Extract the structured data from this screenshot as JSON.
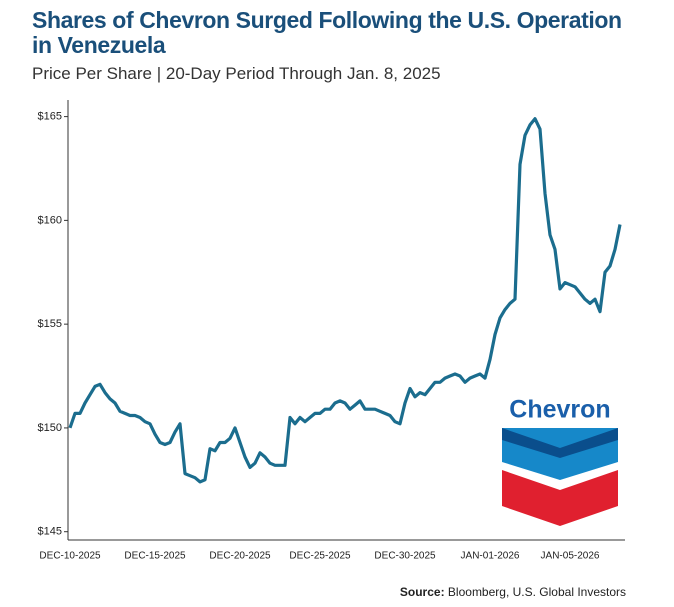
{
  "chart_data": {
    "type": "line",
    "title": "Shares of Chevron Surged Following the U.S. Operation in Venezuela",
    "subtitle": "Price Per Share | 20-Day Period Through Jan. 8, 2025",
    "categories": [
      "DEC-10-2025",
      null,
      null,
      null,
      null,
      null,
      null,
      null,
      null,
      null,
      null,
      null,
      null,
      null,
      null,
      null,
      null,
      "DEC-15-2025",
      null,
      null,
      null,
      null,
      null,
      null,
      null,
      null,
      null,
      null,
      null,
      null,
      null,
      null,
      null,
      null,
      "DEC-20-2025",
      null,
      null,
      null,
      null,
      null,
      null,
      null,
      null,
      null,
      null,
      null,
      null,
      null,
      null,
      null,
      "DEC-25-2025",
      null,
      null,
      null,
      null,
      null,
      null,
      null,
      null,
      null,
      null,
      null,
      null,
      null,
      null,
      null,
      null,
      "DEC-30-2025",
      null,
      null,
      null,
      null,
      null,
      null,
      null,
      null,
      null,
      null,
      null,
      null,
      null,
      null,
      null,
      null,
      "JAN-01-2026",
      null,
      null,
      null,
      null,
      null,
      null,
      null,
      null,
      null,
      null,
      null,
      null,
      null,
      null,
      null,
      "JAN-05-2026",
      null,
      null,
      null,
      null,
      null,
      null,
      null,
      null,
      null,
      null
    ],
    "series": [
      {
        "name": "Chevron",
        "color": "#1b6d8e",
        "values": [
          150.0,
          150.7,
          150.7,
          151.2,
          151.6,
          152.0,
          152.1,
          151.7,
          151.4,
          151.2,
          150.8,
          150.7,
          150.6,
          150.6,
          150.5,
          150.3,
          150.2,
          149.7,
          149.3,
          149.2,
          149.3,
          149.8,
          150.2,
          147.8,
          147.7,
          147.6,
          147.4,
          147.5,
          149.0,
          148.9,
          149.3,
          149.3,
          149.5,
          150.0,
          149.3,
          148.6,
          148.1,
          148.3,
          148.8,
          148.6,
          148.3,
          148.2,
          148.2,
          148.2,
          150.5,
          150.2,
          150.5,
          150.3,
          150.5,
          150.7,
          150.7,
          150.9,
          150.9,
          151.2,
          151.3,
          151.2,
          150.9,
          151.1,
          151.3,
          150.9,
          150.9,
          150.9,
          150.8,
          150.7,
          150.6,
          150.3,
          150.2,
          151.2,
          151.9,
          151.5,
          151.7,
          151.6,
          151.9,
          152.2,
          152.2,
          152.4,
          152.5,
          152.6,
          152.5,
          152.2,
          152.4,
          152.5,
          152.6,
          152.4,
          153.3,
          154.5,
          155.3,
          155.7,
          156.0,
          156.2,
          162.7,
          164.1,
          164.6,
          164.9,
          164.4,
          161.3,
          159.3,
          158.6,
          156.7,
          157.0,
          156.9,
          156.8,
          156.5,
          156.2,
          156.0,
          156.2,
          155.6,
          157.5,
          157.8,
          158.6,
          159.8
        ]
      }
    ],
    "ylim": [
      144.6,
      165.8
    ],
    "yticks": [
      {
        "value": 145,
        "label": "$145"
      },
      {
        "value": 150,
        "label": "$150"
      },
      {
        "value": 155,
        "label": "$155"
      },
      {
        "value": 160,
        "label": "$160"
      },
      {
        "value": 165,
        "label": "$165"
      }
    ],
    "logo_text": "Chevron",
    "source_label": "Source:",
    "source": "Bloomberg, U.S. Global Investors"
  }
}
